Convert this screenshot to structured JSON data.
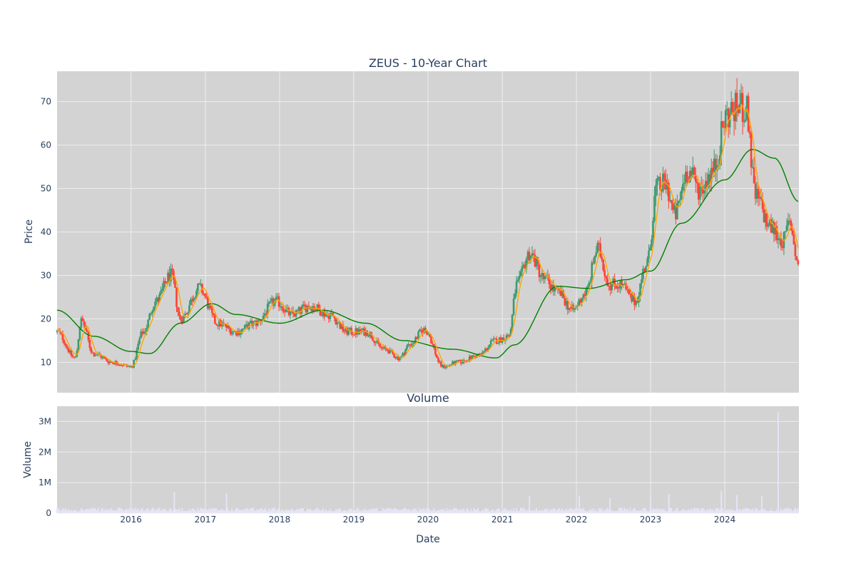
{
  "chart_data": [
    {
      "type": "candlestick",
      "title": "ZEUS - 10-Year Chart",
      "xlabel": "",
      "ylabel": "Price",
      "xlim": [
        "2015-01-02",
        "2024-12-31"
      ],
      "ylim": [
        3,
        77
      ],
      "y_ticks": [
        10,
        20,
        30,
        40,
        50,
        60,
        70
      ],
      "grid": true,
      "colors": {
        "plot_bg": "#d3d3d3",
        "grid": "#eeeeee",
        "up": "#3d9970",
        "down": "#ff4136",
        "ma_fast": "#ffa500",
        "ma_slow": "#008000",
        "text": "#2a3f5f"
      },
      "price_anchors": [
        [
          "2015-01-01",
          17
        ],
        [
          "2015-04-01",
          11
        ],
        [
          "2015-05-01",
          19.5
        ],
        [
          "2015-07-01",
          12
        ],
        [
          "2015-10-01",
          10
        ],
        [
          "2016-01-01",
          9
        ],
        [
          "2016-03-01",
          17
        ],
        [
          "2016-05-01",
          24
        ],
        [
          "2016-07-15",
          30
        ],
        [
          "2016-09-01",
          20
        ],
        [
          "2016-12-01",
          27
        ],
        [
          "2017-03-01",
          19
        ],
        [
          "2017-06-01",
          17
        ],
        [
          "2017-09-01",
          19
        ],
        [
          "2017-12-15",
          24
        ],
        [
          "2018-03-01",
          21
        ],
        [
          "2018-06-01",
          23
        ],
        [
          "2018-09-01",
          21
        ],
        [
          "2018-12-01",
          17
        ],
        [
          "2019-03-01",
          17
        ],
        [
          "2019-06-01",
          13
        ],
        [
          "2019-08-15",
          11
        ],
        [
          "2019-10-01",
          14
        ],
        [
          "2019-12-15",
          17.5
        ],
        [
          "2020-03-15",
          9
        ],
        [
          "2020-06-01",
          10
        ],
        [
          "2020-09-01",
          11.5
        ],
        [
          "2020-12-01",
          15
        ],
        [
          "2021-02-01",
          16
        ],
        [
          "2021-03-15",
          28
        ],
        [
          "2021-05-15",
          35
        ],
        [
          "2021-08-01",
          29
        ],
        [
          "2021-10-01",
          26
        ],
        [
          "2021-12-15",
          22
        ],
        [
          "2022-02-15",
          26
        ],
        [
          "2022-04-15",
          36
        ],
        [
          "2022-06-15",
          28
        ],
        [
          "2022-08-01",
          28
        ],
        [
          "2022-10-15",
          24
        ],
        [
          "2022-12-15",
          33
        ],
        [
          "2023-02-01",
          50
        ],
        [
          "2023-03-15",
          51
        ],
        [
          "2023-05-01",
          44
        ],
        [
          "2023-07-01",
          54
        ],
        [
          "2023-09-01",
          50
        ],
        [
          "2023-11-01",
          54
        ],
        [
          "2024-01-15",
          67
        ],
        [
          "2024-03-15",
          69
        ],
        [
          "2024-04-15",
          68
        ],
        [
          "2024-06-01",
          48
        ],
        [
          "2024-08-15",
          41
        ],
        [
          "2024-10-15",
          38
        ],
        [
          "2024-11-15",
          42
        ],
        [
          "2024-12-31",
          32
        ]
      ],
      "slow_ma_anchors": [
        [
          "2015-01-01",
          22
        ],
        [
          "2015-07-01",
          16
        ],
        [
          "2016-01-01",
          12.5
        ],
        [
          "2016-04-01",
          12
        ],
        [
          "2016-09-01",
          19
        ],
        [
          "2017-02-01",
          23.5
        ],
        [
          "2017-06-01",
          21
        ],
        [
          "2018-01-01",
          19
        ],
        [
          "2018-08-01",
          22
        ],
        [
          "2019-03-01",
          19
        ],
        [
          "2019-09-01",
          15
        ],
        [
          "2020-05-01",
          13
        ],
        [
          "2020-12-01",
          11
        ],
        [
          "2021-03-01",
          14
        ],
        [
          "2021-10-01",
          27.5
        ],
        [
          "2022-03-01",
          27
        ],
        [
          "2022-09-01",
          29
        ],
        [
          "2023-01-01",
          31
        ],
        [
          "2023-06-01",
          42
        ],
        [
          "2024-01-01",
          52
        ],
        [
          "2024-05-15",
          59
        ],
        [
          "2024-09-01",
          57
        ],
        [
          "2024-12-31",
          47
        ]
      ],
      "volume_spikes": [
        [
          "2016-08-01",
          700000
        ],
        [
          "2017-04-15",
          650000
        ],
        [
          "2021-05-15",
          550000
        ],
        [
          "2022-01-15",
          580000
        ],
        [
          "2022-06-15",
          500000
        ],
        [
          "2023-01-01",
          500000
        ],
        [
          "2023-04-01",
          620000
        ],
        [
          "2023-12-15",
          720000
        ],
        [
          "2024-03-01",
          600000
        ],
        [
          "2024-07-01",
          550000
        ],
        [
          "2024-09-20",
          3300000
        ]
      ],
      "volume_ylim": [
        0,
        3500000
      ]
    },
    {
      "type": "bar",
      "title": "Volume",
      "xlabel": "Date",
      "ylabel": "Volume",
      "y_ticks": [
        0,
        1000000,
        2000000,
        3000000
      ],
      "y_tick_labels": [
        "0",
        "1M",
        "2M",
        "3M"
      ],
      "x_ticks": [
        "2016-01-01",
        "2017-01-01",
        "2018-01-01",
        "2019-01-01",
        "2020-01-01",
        "2021-01-01",
        "2022-01-01",
        "2023-01-01",
        "2024-01-01"
      ],
      "x_tick_labels": [
        "2016",
        "2017",
        "2018",
        "2019",
        "2020",
        "2021",
        "2022",
        "2023",
        "2024"
      ],
      "colors": {
        "bar": "#e6e6fa"
      }
    }
  ]
}
